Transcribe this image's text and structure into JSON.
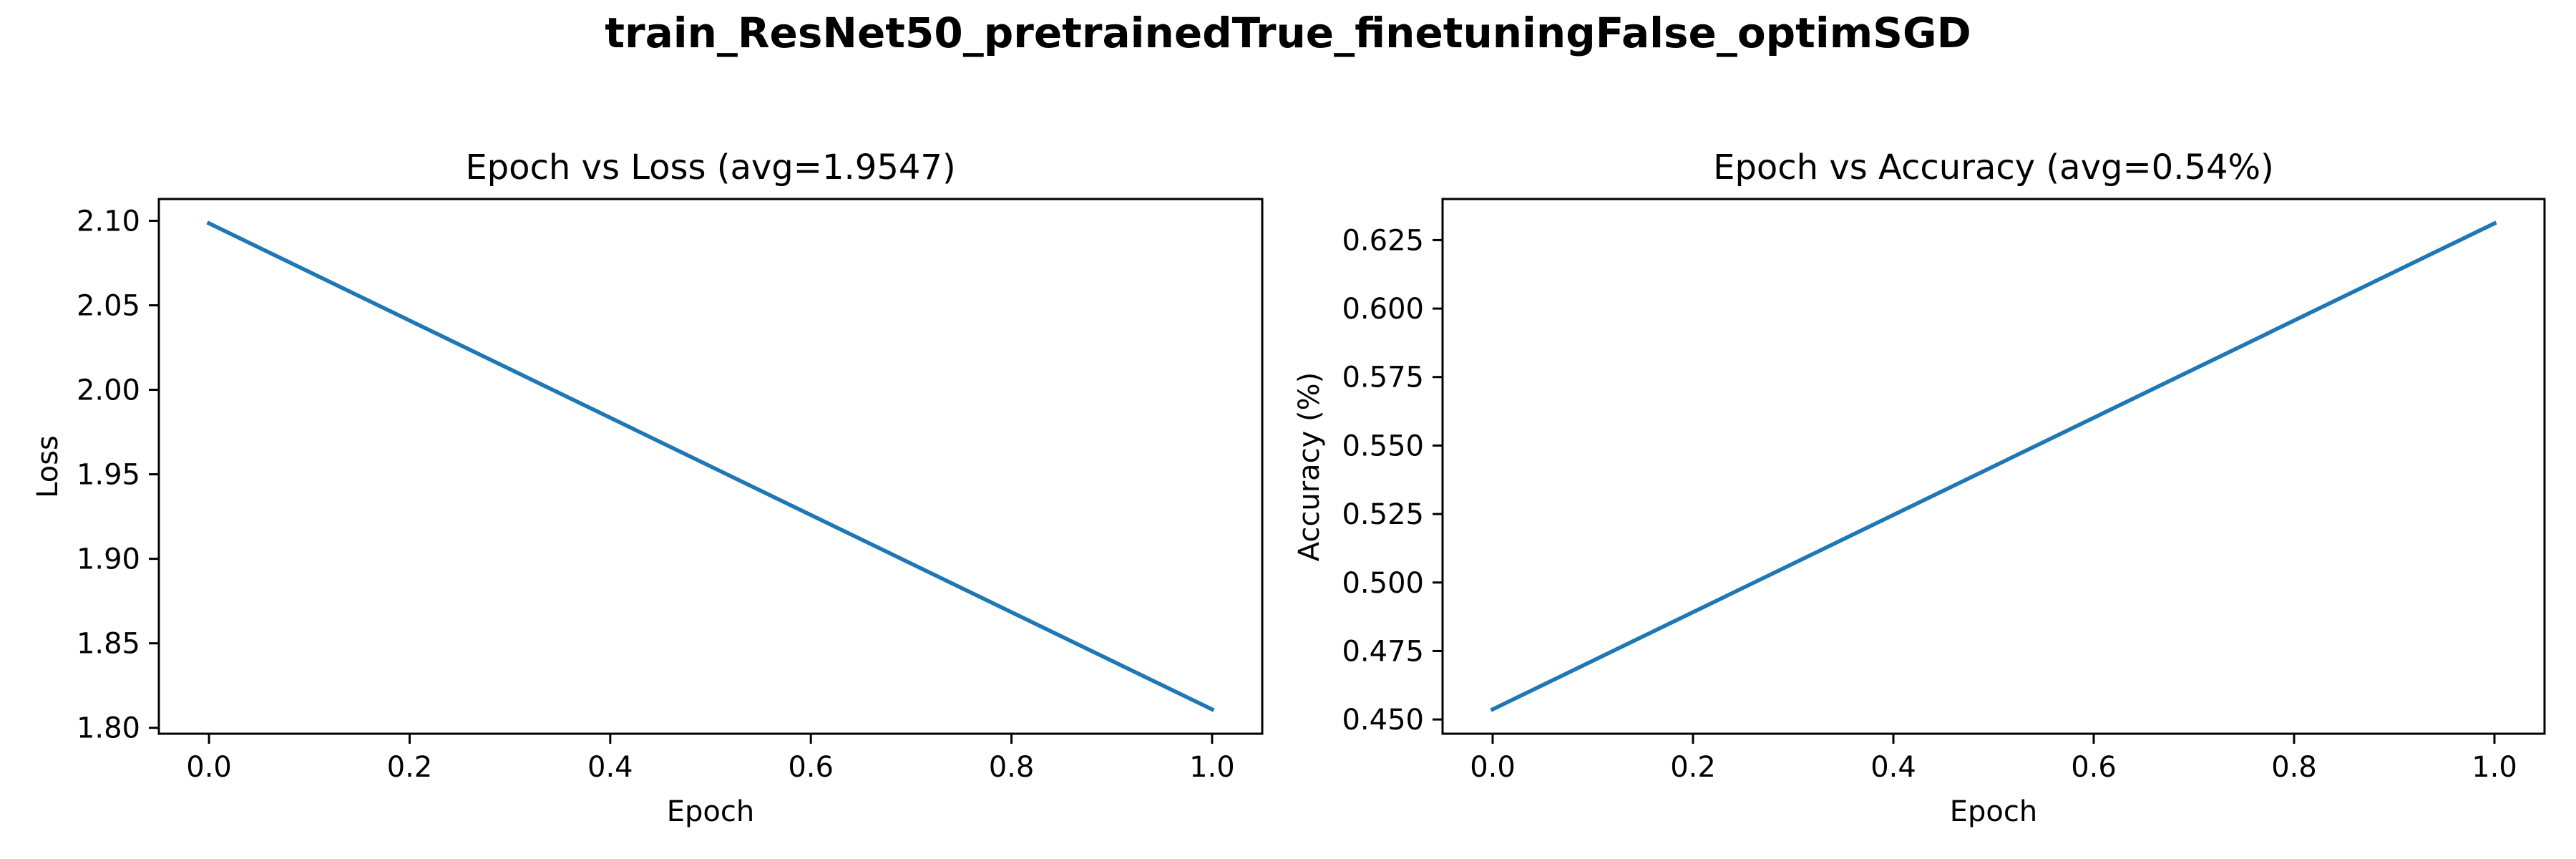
{
  "figure": {
    "title": "train_ResNet50_pretrainedTrue_finetuningFalse_optimSGD"
  },
  "chart_data": [
    {
      "type": "line",
      "title": "Epoch vs Loss (avg=1.9547)",
      "xlabel": "Epoch",
      "ylabel": "Loss",
      "x": [
        0.0,
        1.0
      ],
      "series": [
        {
          "values": [
            2.0985,
            1.8109
          ],
          "color": "#1f77b4"
        }
      ],
      "xlim": [
        -0.05,
        1.05
      ],
      "ylim": [
        1.7965,
        2.1129
      ],
      "xticks": [
        0.0,
        0.2,
        0.4,
        0.6,
        0.8,
        1.0
      ],
      "xtick_labels": [
        "0.0",
        "0.2",
        "0.4",
        "0.6",
        "0.8",
        "1.0"
      ],
      "yticks": [
        1.8,
        1.85,
        1.9,
        1.95,
        2.0,
        2.05,
        2.1
      ],
      "ytick_labels": [
        "1.80",
        "1.85",
        "1.90",
        "1.95",
        "2.00",
        "2.05",
        "2.10"
      ],
      "grid": false,
      "legend": false
    },
    {
      "type": "line",
      "title": "Epoch vs Accuracy (avg=0.54%)",
      "xlabel": "Epoch",
      "ylabel": "Accuracy (%)",
      "x": [
        0.0,
        1.0
      ],
      "series": [
        {
          "values": [
            0.4537,
            0.6311
          ],
          "color": "#1f77b4"
        }
      ],
      "xlim": [
        -0.05,
        1.05
      ],
      "ylim": [
        0.4448,
        0.64
      ],
      "xticks": [
        0.0,
        0.2,
        0.4,
        0.6,
        0.8,
        1.0
      ],
      "xtick_labels": [
        "0.0",
        "0.2",
        "0.4",
        "0.6",
        "0.8",
        "1.0"
      ],
      "yticks": [
        0.45,
        0.475,
        0.5,
        0.525,
        0.55,
        0.575,
        0.6,
        0.625
      ],
      "ytick_labels": [
        "0.450",
        "0.475",
        "0.500",
        "0.525",
        "0.550",
        "0.575",
        "0.600",
        "0.625"
      ],
      "grid": false,
      "legend": false
    }
  ]
}
